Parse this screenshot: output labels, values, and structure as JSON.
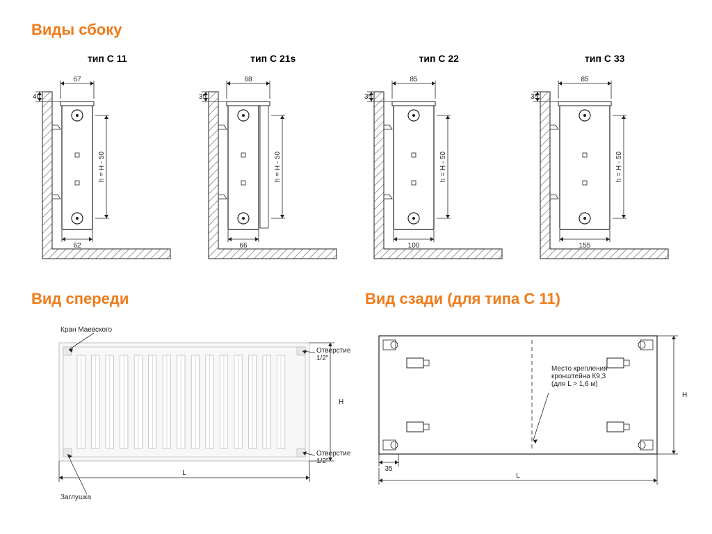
{
  "colors": {
    "accent": "#f07b1a",
    "line": "#231f20",
    "hatch": "#999999",
    "panel_fill": "#f7f7f7",
    "panel_stroke": "#bdbdbd",
    "white": "#ffffff"
  },
  "headings": {
    "side": "Виды сбоку",
    "front": "Вид спереди",
    "rear": "Вид сзади (для типа С 11)"
  },
  "side_height_label": "h = H - 50",
  "side_views": [
    {
      "title": "тип С 11",
      "top_dim": "67",
      "left_dim": "40",
      "bottom_dim": "62",
      "body_w": 44,
      "body_after": 0
    },
    {
      "title": "тип С 21s",
      "top_dim": "68",
      "left_dim": "35",
      "bottom_dim": "66",
      "body_w": 44,
      "body_after": 14
    },
    {
      "title": "тип С 22",
      "top_dim": "85",
      "left_dim": "35",
      "bottom_dim": "100",
      "body_w": 58,
      "body_after": 0
    },
    {
      "title": "тип С 33",
      "top_dim": "85",
      "left_dim": "35",
      "bottom_dim": "155",
      "body_w": 72,
      "body_after": 0
    }
  ],
  "front_view": {
    "annotations": {
      "valve": "Кран Маевского",
      "hole": "Отверстие\n1/2\"",
      "plug": "Заглушка"
    },
    "length_label": "L",
    "height_label": "H",
    "rib_count": 15
  },
  "rear_view": {
    "mount_note": "Место крепления\nкронштейна К9,3\n(для L > 1,6 м)",
    "small_dim": "35",
    "length_label": "L",
    "height_label": "H"
  },
  "stroke_width": {
    "thin": 0.8,
    "med": 1.2
  }
}
